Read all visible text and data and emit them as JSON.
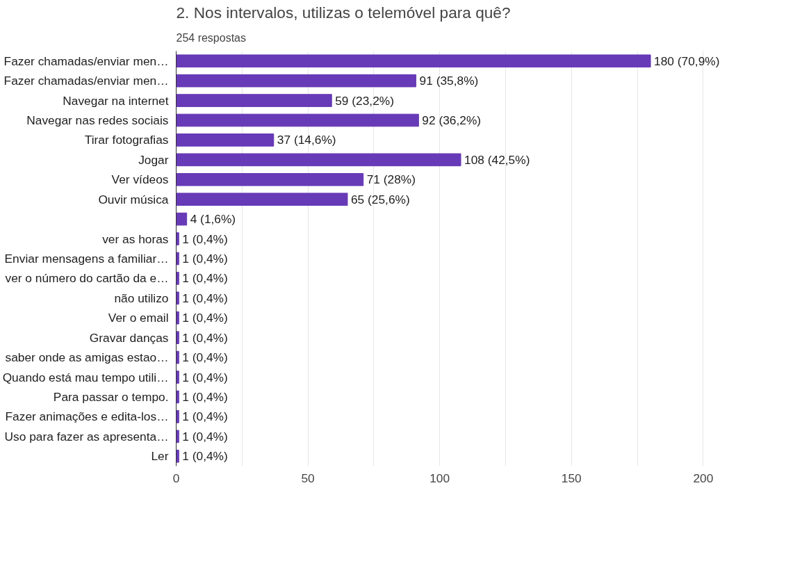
{
  "chart_data": {
    "type": "bar",
    "orientation": "horizontal",
    "title": "2. Nos intervalos, utilizas o telemóvel para quê?",
    "subtitle": "254 respostas",
    "categories": [
      "Fazer chamadas/enviar men…",
      "Fazer chamadas/enviar men…",
      "Navegar na internet",
      "Navegar nas redes sociais",
      "Tirar fotografias",
      "Jogar",
      "Ver vídeos",
      "Ouvir música",
      null,
      "ver as horas",
      "Enviar mensagens a familiar…",
      "ver o número do cartão da e…",
      "não utilizo",
      "Ver o email",
      "Gravar danças",
      "saber onde as amigas estao…",
      "Quando está mau tempo utili…",
      "Para passar o tempo.",
      "Fazer animações e edita-los…",
      "Uso para fazer as apresenta…",
      "Ler"
    ],
    "values": [
      180,
      91,
      59,
      92,
      37,
      108,
      71,
      65,
      4,
      1,
      1,
      1,
      1,
      1,
      1,
      1,
      1,
      1,
      1,
      1,
      1
    ],
    "value_labels": [
      "180 (70,9%)",
      "91 (35,8%)",
      "59 (23,2%)",
      "92 (36,2%)",
      "37 (14,6%)",
      "108 (42,5%)",
      "71 (28%)",
      "65 (25,6%)",
      "4 (1,6%)",
      "1 (0,4%)",
      "1 (0,4%)",
      "1 (0,4%)",
      "1 (0,4%)",
      "1 (0,4%)",
      "1 (0,4%)",
      "1 (0,4%)",
      "1 (0,4%)",
      "1 (0,4%)",
      "1 (0,4%)",
      "1 (0,4%)",
      "1 (0,4%)"
    ],
    "color": "#673ab7",
    "xlim": [
      0,
      200
    ],
    "xticks": [
      0,
      {
        "value": 25,
        "label": null
      },
      50,
      {
        "value": 75,
        "label": null
      },
      100,
      {
        "value": 125,
        "label": null
      },
      150,
      {
        "value": 175,
        "label": null
      },
      200
    ],
    "grid": "x"
  }
}
